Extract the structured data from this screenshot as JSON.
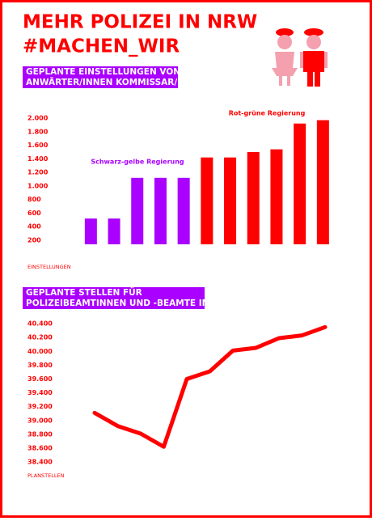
{
  "header": {
    "title": "MEHR POLIZEI IN NRW",
    "hashtag": "#MACHEN_WIR"
  },
  "chart_data": [
    {
      "type": "bar",
      "title": [
        "GEPLANTE EINSTELLUNGEN VON",
        "ANWÄRTER/INNEN KOMMISSAR/IN"
      ],
      "categories": [
        null,
        null,
        null,
        null,
        null,
        null,
        null,
        null,
        null,
        null,
        null
      ],
      "values": [
        520,
        520,
        1120,
        1120,
        1120,
        1420,
        1420,
        1500,
        1540,
        1920,
        1970
      ],
      "colors": [
        "#aa00ff",
        "#aa00ff",
        "#aa00ff",
        "#aa00ff",
        "#aa00ff",
        "#ff0000",
        "#ff0000",
        "#ff0000",
        "#ff0000",
        "#ff0000",
        "#ff0000"
      ],
      "ylim": [
        140,
        2000
      ],
      "yticks": [
        200,
        400,
        600,
        800,
        {
          "value": 1000,
          "label": "1.000"
        },
        {
          "value": 1200,
          "label": "1.200"
        },
        {
          "value": 1400,
          "label": "1.400"
        },
        {
          "value": 1600,
          "label": "1.600"
        },
        {
          "value": 1800,
          "label": "1.800"
        },
        {
          "value": 2000,
          "label": "2.000"
        }
      ],
      "ylabel": "EINSTELLUNGEN",
      "annotations": [
        {
          "text": "Schwarz-gelbe Regierung",
          "color": "#aa00ff"
        },
        {
          "text": "Rot-grüne Regierung",
          "color": "#ff0000"
        }
      ],
      "grid": false
    },
    {
      "type": "line",
      "title": [
        "GEPLANTE STELLEN FÜR",
        "POLIZEIBEAMTINNEN UND -BEAMTE IN NRW"
      ],
      "categories": [
        null,
        null,
        null,
        null,
        null,
        null,
        null,
        null,
        null,
        null,
        null
      ],
      "values": [
        39110,
        38920,
        38810,
        38620,
        39600,
        39710,
        40010,
        40050,
        40190,
        40230,
        40350
      ],
      "color": "#ff0000",
      "ylim": [
        38300,
        40500
      ],
      "yticks": [
        {
          "value": 38400,
          "label": "38.400"
        },
        {
          "value": 38600,
          "label": "38.600"
        },
        {
          "value": 38800,
          "label": "38.800"
        },
        {
          "value": 39000,
          "label": "39.000"
        },
        {
          "value": 39200,
          "label": "39.200"
        },
        {
          "value": 39400,
          "label": "39.400"
        },
        {
          "value": 39600,
          "label": "39.600"
        },
        {
          "value": 39800,
          "label": "39.800"
        },
        {
          "value": 40000,
          "label": "40.000"
        },
        {
          "value": 40200,
          "label": "40.200"
        },
        {
          "value": 40400,
          "label": "40.400"
        }
      ],
      "ylabel": "PLANSTELLEN",
      "grid": false
    }
  ]
}
